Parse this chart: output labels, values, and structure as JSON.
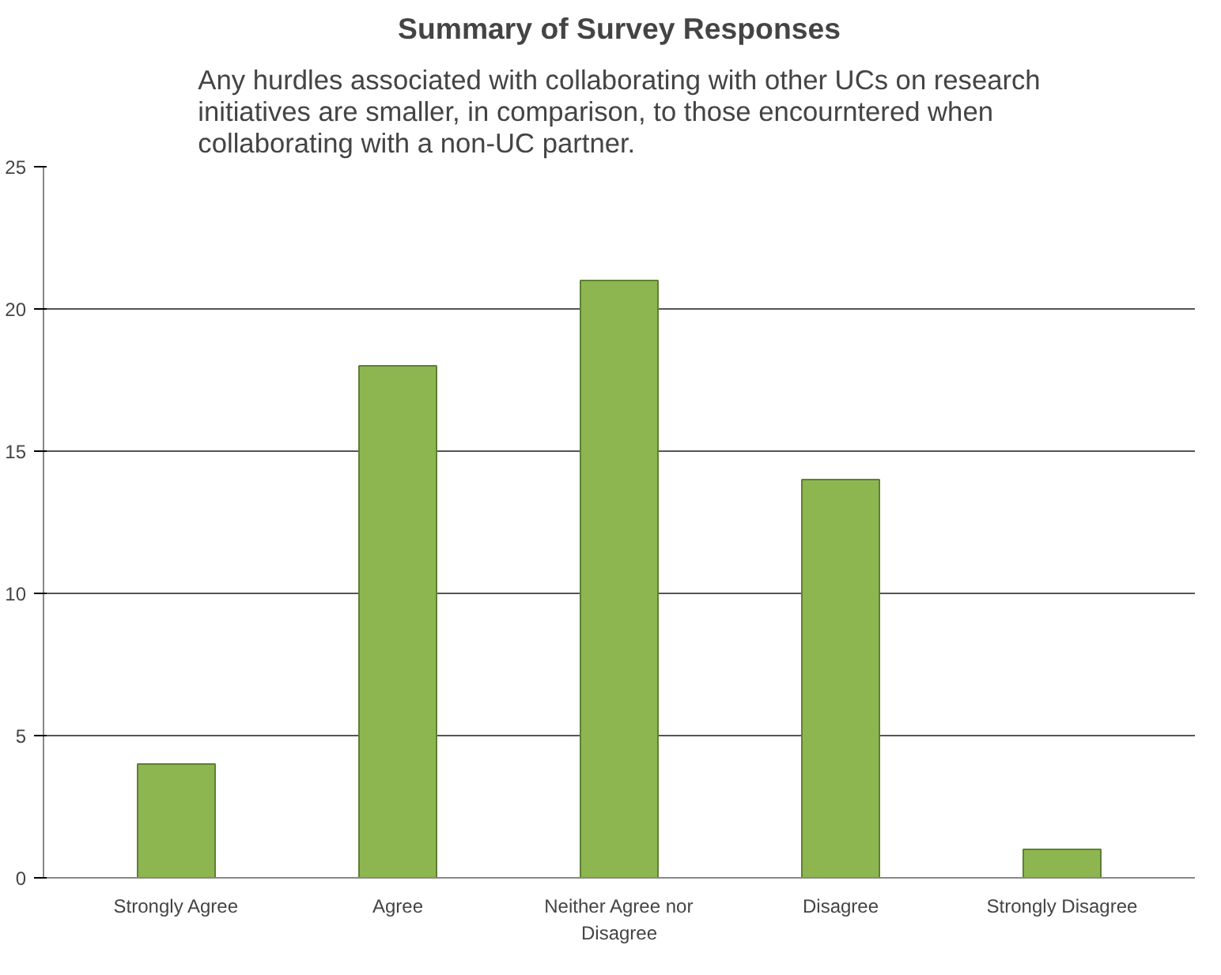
{
  "chart_data": {
    "type": "bar",
    "title": "Summary of Survey Responses",
    "subtitle": "Any hurdles associated with collaborating with other UCs on research initiatives are smaller, in comparison, to those encourntered when collaborating with a non-UC partner.",
    "categories": [
      "Strongly Agree",
      "Agree",
      "Neither Agree nor Disagree",
      "Disagree",
      "Strongly Disagree"
    ],
    "values": [
      4,
      18,
      21,
      14,
      1
    ],
    "color": "#8db650",
    "ylim": [
      0,
      25
    ],
    "yticks": [
      0,
      5,
      10,
      15,
      20,
      25
    ],
    "grid": "y"
  }
}
